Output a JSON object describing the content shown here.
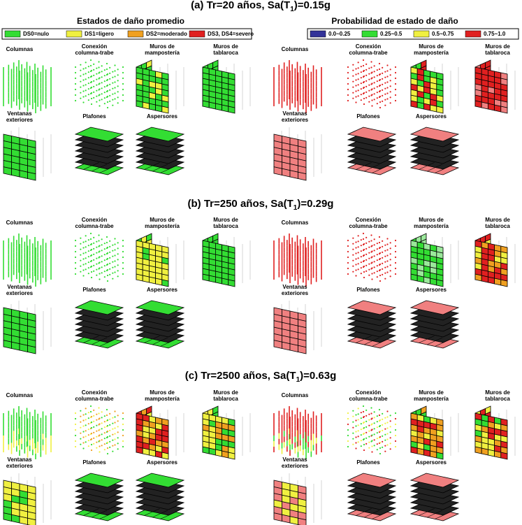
{
  "sections": [
    {
      "pre": "(a) Tr=20 años, Sa(T",
      "sub": "1",
      "post": ")=0.15g"
    },
    {
      "pre": "(b) Tr=250 años, Sa(T",
      "sub": "1",
      "post": ")=0.29g"
    },
    {
      "pre": "(c) Tr=2500 años, Sa(T",
      "sub": "1",
      "post": ")=0.63g"
    }
  ],
  "left_header": "Estados de daño promedio",
  "right_header": "Probabilidad de estado de daño",
  "left_legend": [
    "DS0=nulo",
    "DS1=ligero",
    "DS2=moderado",
    "DS3, DS4=severo"
  ],
  "right_legend": [
    "0.0~0.25",
    "0.25~0.5",
    "0.5~0.75",
    "0.75~1.0"
  ],
  "components": [
    [
      "Columnas"
    ],
    [
      "Conexión",
      "columna-trabe"
    ],
    [
      "Muros de",
      "mampostería"
    ],
    [
      "Muros de",
      "tablaroca"
    ],
    [
      "Ventanas",
      "exteriores"
    ],
    [
      "Plafones"
    ],
    [
      "Aspersores"
    ]
  ]
}
